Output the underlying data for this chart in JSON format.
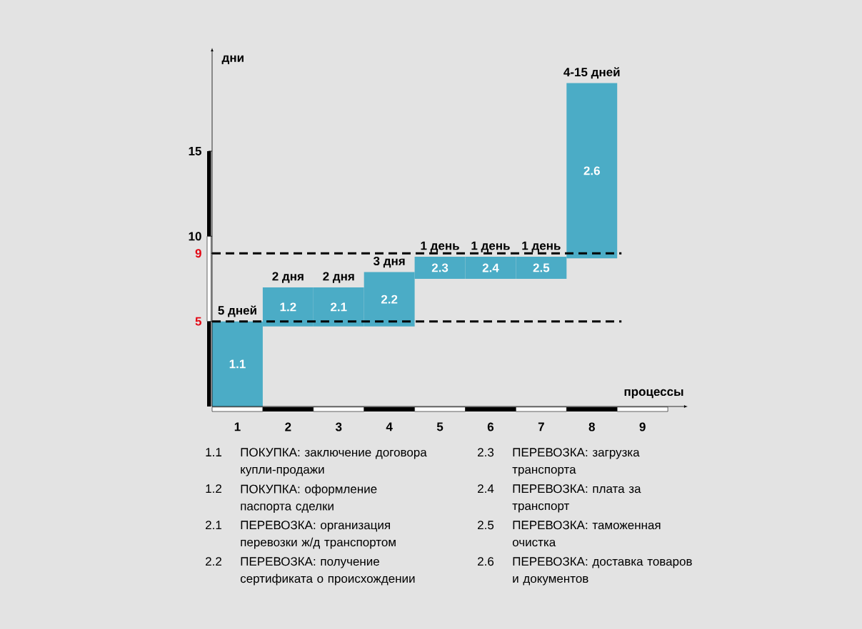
{
  "chart_data": {
    "type": "bar",
    "xlabel": "процессы",
    "ylabel": "дни",
    "categories": [
      "1",
      "2",
      "3",
      "4",
      "5",
      "6",
      "7",
      "8",
      "9"
    ],
    "base": [
      0,
      4.7,
      4.7,
      4.7,
      7.5,
      7.5,
      7.5,
      8.7,
      null
    ],
    "values": [
      5,
      2.3,
      2.3,
      3.2,
      1.3,
      1.3,
      1.3,
      10.3,
      null
    ],
    "value_labels": [
      "5 дней",
      "2 дня",
      "2 дня",
      "3 дня",
      "1 день",
      "1 день",
      "1 день",
      "4-15 дней",
      null
    ],
    "color": "#4bacc6",
    "ylim": [
      0,
      20.7
    ],
    "yticks": [
      5,
      9,
      10,
      15
    ],
    "ref_lines": [
      {
        "axis": "y",
        "value": 5,
        "line_style": "dashed",
        "color": "#000000"
      },
      {
        "axis": "y",
        "value": 9,
        "line_style": "dashed",
        "color": "#000000"
      }
    ],
    "annotations": [
      "1.1",
      "1.2",
      "2.1",
      "2.2",
      "2.3",
      "2.4",
      "2.5",
      "2.6",
      "1.1",
      "ПОКУПКА: заключение договора купли-продажи",
      "1.2",
      "ПОКУПКА: оформление паспорта сделки",
      "2.1",
      "ПЕРЕВОЗКА: организация перевозки ж/д транспортом",
      "2.2",
      "ПЕРЕВОЗКА: получение сертификата о происхождении",
      "2.3",
      "ПЕРЕВОЗКА: загрузка транспорта",
      "2.4",
      "ПЕРЕВОЗКА: плата за транспорт",
      "2.5",
      "ПЕРЕВОЗКА: таможенная очистка",
      "2.6",
      "ПЕРЕВОЗКА: доставка товаров и документов"
    ]
  }
}
